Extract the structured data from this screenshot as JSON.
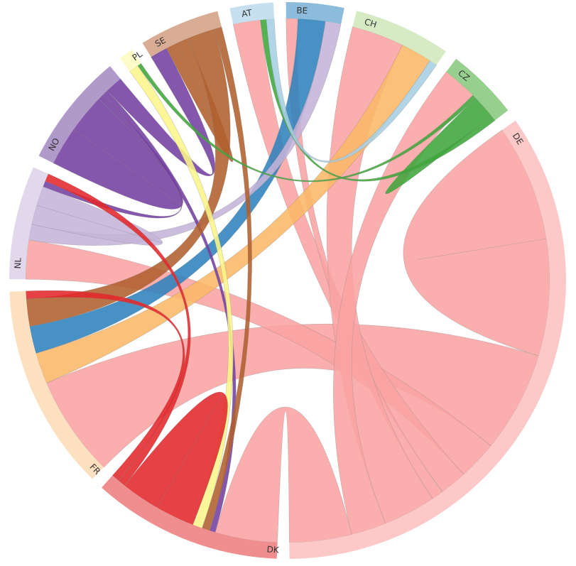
{
  "chart_data": {
    "type": "chord",
    "groups": [
      {
        "id": "AT",
        "label": "AT",
        "color": "#a6cfe4",
        "arcColor": "#c6e0ef"
      },
      {
        "id": "BE",
        "label": "BE",
        "color": "#2f82bd",
        "arcColor": "#8cbcdc"
      },
      {
        "id": "CH",
        "label": "CH",
        "color": "#fbb868",
        "arcColor": "#d6ebc3"
      },
      {
        "id": "CZ",
        "label": "CZ",
        "color": "#3ea63a",
        "arcColor": "#97d08e"
      },
      {
        "id": "DE",
        "label": "DE",
        "color": "#f9a3a3",
        "arcColor": "#fcc8c8"
      },
      {
        "id": "DK",
        "label": "DK",
        "color": "#e2282b",
        "arcColor": "#ef8d8f"
      },
      {
        "id": "FR",
        "label": "FR",
        "color": "#fcbf74",
        "arcColor": "#fde0bf"
      },
      {
        "id": "NL",
        "label": "NL",
        "color": "#c5b3d8",
        "arcColor": "#e2d8ec"
      },
      {
        "id": "NO",
        "label": "NO",
        "color": "#7340a0",
        "arcColor": "#b09ac9"
      },
      {
        "id": "PL",
        "label": "PL",
        "color": "#fbf68a",
        "arcColor": "#fdfbc7"
      },
      {
        "id": "SE",
        "label": "SE",
        "color": "#b05e2e",
        "arcColor": "#d8ad94"
      }
    ],
    "flows": [
      {
        "from": "DE",
        "to": "DE",
        "value": 6.0,
        "color": "#f9a3a3"
      },
      {
        "from": "DE",
        "to": "FR",
        "value": 5.2,
        "color": "#f9a3a3"
      },
      {
        "from": "DE",
        "to": "NL",
        "value": 2.0,
        "color": "#f9a3a3"
      },
      {
        "from": "DE",
        "to": "AT",
        "value": 1.4,
        "color": "#f9a3a3"
      },
      {
        "from": "DE",
        "to": "BE",
        "value": 0.6,
        "color": "#f9a3a3"
      },
      {
        "from": "DE",
        "to": "CH",
        "value": 2.7,
        "color": "#f9a3a3"
      },
      {
        "from": "DE",
        "to": "CZ",
        "value": 1.8,
        "color": "#f9a3a3"
      },
      {
        "from": "DE",
        "to": "DK",
        "value": 3.2,
        "color": "#f9a3a3"
      },
      {
        "from": "FR",
        "to": "CH",
        "value": 1.6,
        "color": "#fbb868"
      },
      {
        "from": "BE",
        "to": "FR",
        "value": 1.4,
        "color": "#2f82bd"
      },
      {
        "from": "NL",
        "to": "BE",
        "value": 0.8,
        "color": "#c5b3d8"
      },
      {
        "from": "NL",
        "to": "NL",
        "value": 1.0,
        "color": "#c5b3d8"
      },
      {
        "from": "NO",
        "to": "NO",
        "value": 2.0,
        "color": "#7340a0"
      },
      {
        "from": "NO",
        "to": "NL",
        "value": 0.3,
        "color": "#7340a0"
      },
      {
        "from": "NO",
        "to": "DK",
        "value": 0.3,
        "color": "#7340a0"
      },
      {
        "from": "SE",
        "to": "NO",
        "value": 0.9,
        "color": "#7340a0"
      },
      {
        "from": "SE",
        "to": "SE",
        "value": 0.6,
        "color": "#b05e2e"
      },
      {
        "from": "SE",
        "to": "FR",
        "value": 1.4,
        "color": "#b05e2e"
      },
      {
        "from": "SE",
        "to": "DK",
        "value": 0.4,
        "color": "#b05e2e"
      },
      {
        "from": "PL",
        "to": "DK",
        "value": 0.5,
        "color": "#fbf68a"
      },
      {
        "from": "PL",
        "to": "CZ",
        "value": 0.2,
        "color": "#3ea63a"
      },
      {
        "from": "CZ",
        "to": "CZ",
        "value": 0.6,
        "color": "#3ea63a"
      },
      {
        "from": "CZ",
        "to": "AT",
        "value": 0.3,
        "color": "#3ea63a"
      },
      {
        "from": "DK",
        "to": "DK",
        "value": 2.0,
        "color": "#e2282b"
      },
      {
        "from": "DK",
        "to": "NL",
        "value": 0.4,
        "color": "#e2282b"
      },
      {
        "from": "DK",
        "to": "FR",
        "value": 0.4,
        "color": "#e2282b"
      },
      {
        "from": "AT",
        "to": "CH",
        "value": 0.4,
        "color": "#a6cfe4"
      }
    ]
  }
}
